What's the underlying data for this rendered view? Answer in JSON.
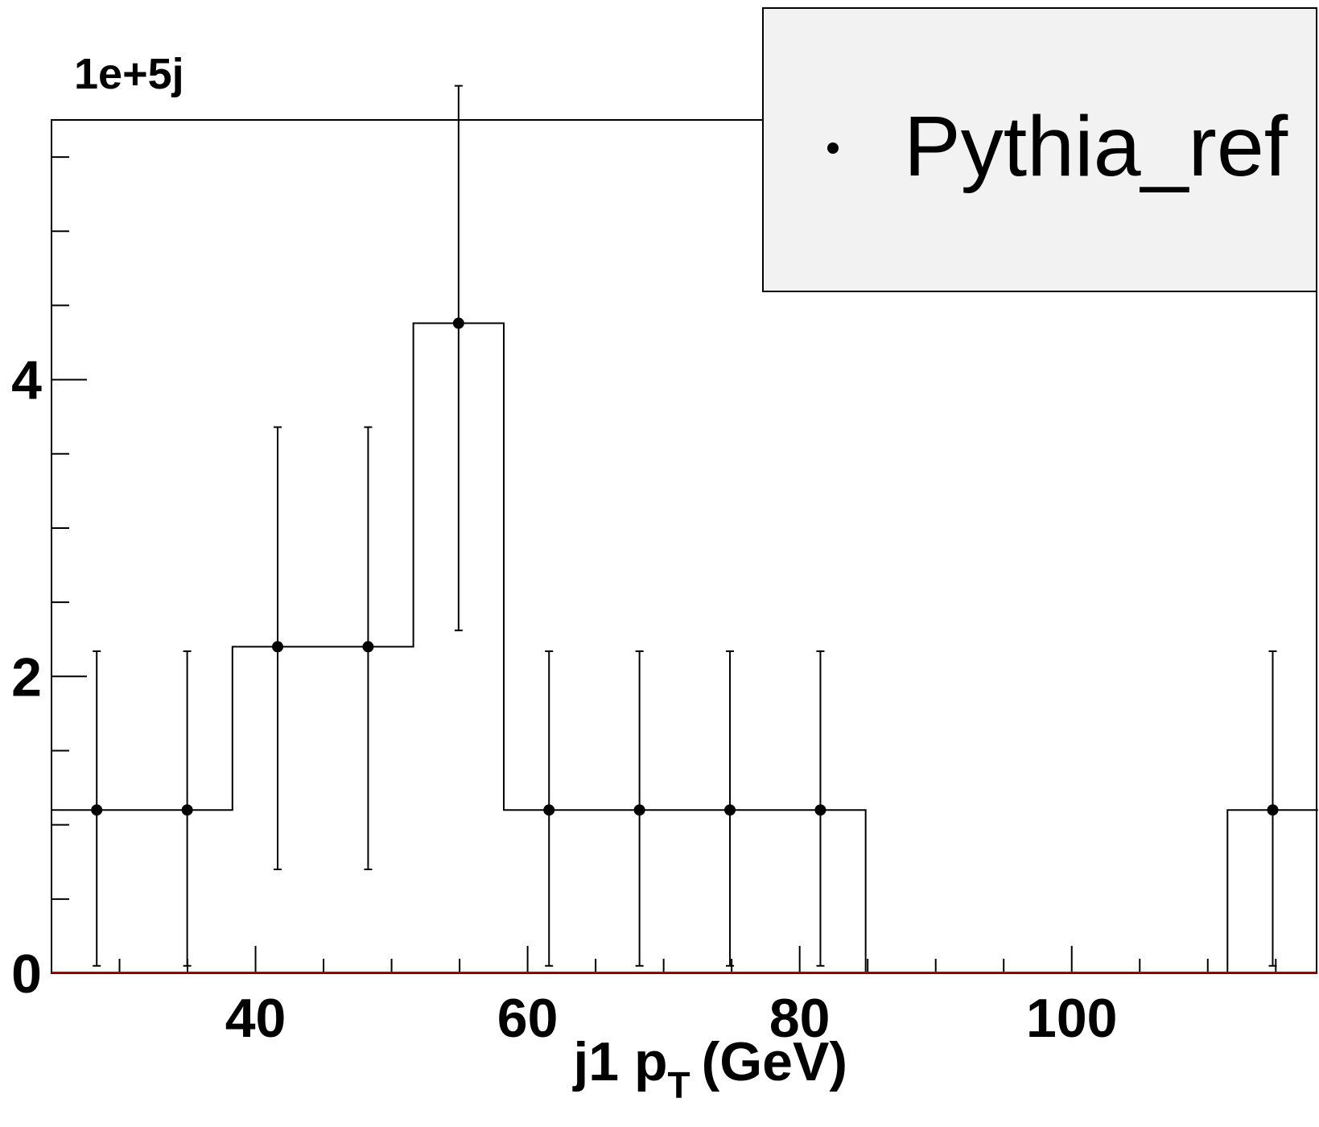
{
  "chart_data": {
    "type": "histogram",
    "x_axis": {
      "title_main": "j1 p",
      "title_sub": "T",
      "title_unit": "(GeV)",
      "range": [
        25,
        118
      ],
      "ticks": [
        40,
        60,
        80,
        100
      ],
      "tick_labels": [
        "40",
        "60",
        "80",
        "100"
      ]
    },
    "y_axis": {
      "exponent_label": "1e+5j",
      "range": [
        0,
        5.75
      ],
      "ticks": [
        0,
        2,
        4
      ],
      "tick_labels": [
        "0",
        "2",
        "4"
      ]
    },
    "series": [
      {
        "name": "Pythia_ref",
        "bin_edges": [
          25.0,
          31.65,
          38.3,
          44.95,
          51.6,
          58.25,
          64.9,
          71.55,
          78.2,
          84.85,
          91.5,
          98.15,
          104.8,
          111.45,
          118.1
        ],
        "values": [
          1.1,
          1.1,
          2.2,
          2.2,
          4.38,
          1.1,
          1.1,
          1.1,
          1.1,
          0,
          0,
          0,
          0,
          1.1
        ],
        "err_low": [
          1.05,
          1.05,
          1.5,
          1.5,
          2.07,
          1.05,
          1.05,
          1.05,
          1.05,
          0,
          0,
          0,
          0,
          1.05
        ],
        "err_high": [
          1.07,
          1.07,
          1.48,
          1.48,
          1.6,
          1.07,
          1.07,
          1.07,
          1.07,
          0,
          0,
          0,
          0,
          1.07
        ]
      }
    ],
    "legend": {
      "position": "top-right",
      "entries": [
        "Pythia_ref"
      ]
    }
  }
}
